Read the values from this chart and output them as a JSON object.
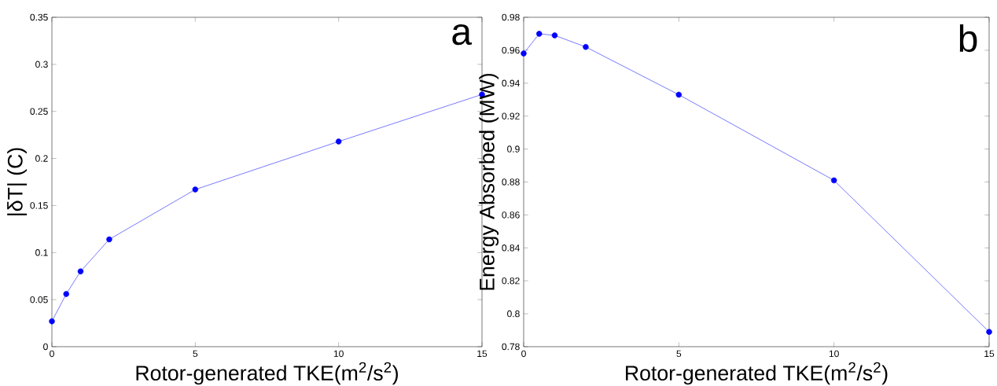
{
  "chart_data": [
    {
      "type": "line",
      "xlabel": "Rotor-generated TKE(m$^{2}$/s$^{2}$)",
      "ylabel": "|δT| (C)",
      "annotations": [
        "a"
      ],
      "x": [
        0,
        0.5,
        1,
        2,
        5,
        10,
        15
      ],
      "series": [
        {
          "color": "#0000ff",
          "values": [
            0.027,
            0.056,
            0.08,
            0.114,
            0.167,
            0.218,
            0.268
          ]
        }
      ],
      "xlim": [
        0,
        15
      ],
      "xticks": [
        0,
        5,
        10,
        15
      ],
      "ylim": [
        0,
        0.35
      ],
      "yticks": [
        0,
        0.05,
        0.1,
        0.15,
        0.2,
        0.25,
        0.3,
        0.35
      ],
      "marker": "circle",
      "line_style": "solid"
    },
    {
      "type": "line",
      "xlabel": "Rotor-generated TKE(m$^{2}$/s$^{2}$)",
      "ylabel": "Energy Absorbed (MW)",
      "annotations": [
        "b"
      ],
      "x": [
        0,
        0.5,
        1,
        2,
        5,
        10,
        15
      ],
      "series": [
        {
          "color": "#0000ff",
          "values": [
            0.958,
            0.97,
            0.969,
            0.962,
            0.933,
            0.881,
            0.789
          ]
        }
      ],
      "xlim": [
        0,
        15
      ],
      "xticks": [
        0,
        5,
        10,
        15
      ],
      "ylim": [
        0.78,
        0.98
      ],
      "yticks": [
        0.78,
        0.8,
        0.82,
        0.84,
        0.86,
        0.88,
        0.9,
        0.92,
        0.94,
        0.96,
        0.98
      ],
      "marker": "circle",
      "line_style": "solid"
    }
  ]
}
